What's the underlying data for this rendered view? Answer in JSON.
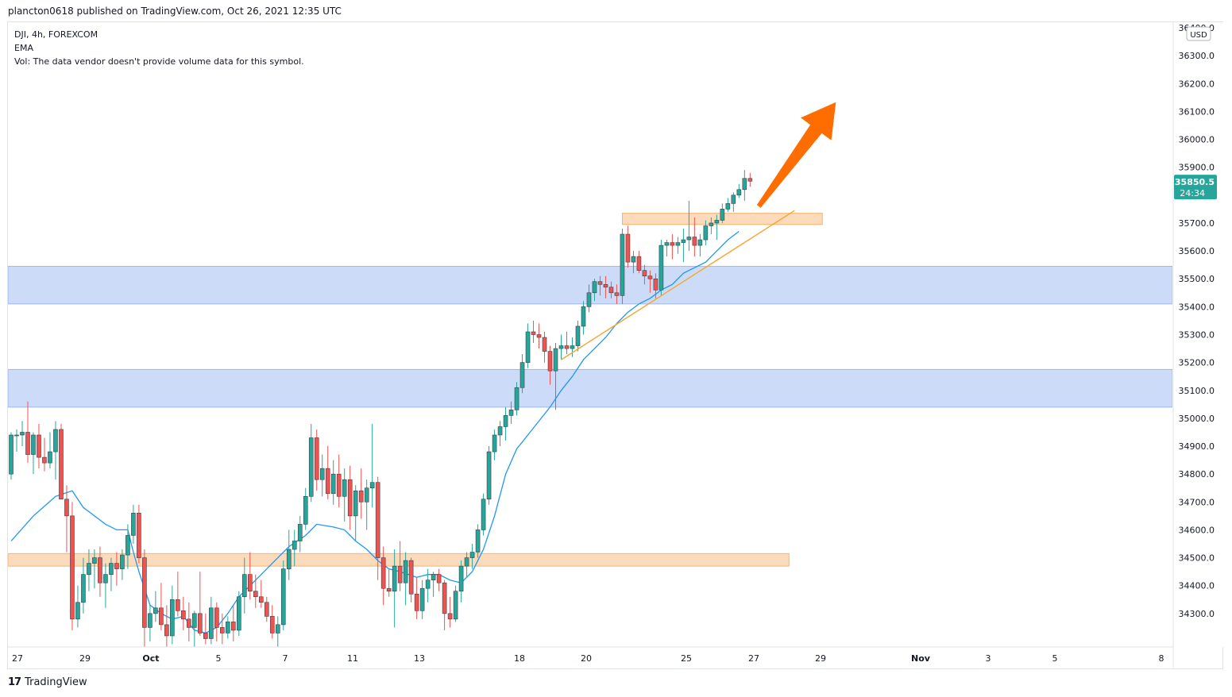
{
  "header": {
    "publish_line": "plancton0618 published on TradingView.com, Oct 26, 2021 12:35 UTC"
  },
  "legend": {
    "symbol_line": "DJI, 4h, FOREXCOM",
    "indicator": "EMA",
    "volume_note": "Vol: The data vendor doesn't provide volume data for this symbol."
  },
  "footer": {
    "brand": "TradingView",
    "logo_icon": "tradingview-logo-icon"
  },
  "chart_data": {
    "type": "candlestick",
    "symbol": "DJI",
    "timeframe": "4h",
    "exchange": "FOREXCOM",
    "currency_label": "USD",
    "ylim": [
      34180,
      36420
    ],
    "y_ticks": [
      34300,
      34400,
      34500,
      34600,
      34700,
      34800,
      34900,
      35000,
      35100,
      35200,
      35300,
      35400,
      35500,
      35600,
      35700,
      35800,
      35900,
      36000,
      36100,
      36200,
      36300,
      36400
    ],
    "x_tick_labels": [
      "27",
      "29",
      "Oct",
      "5",
      "7",
      "11",
      "13",
      "18",
      "20",
      "25",
      "27",
      "29",
      "Nov",
      "3",
      "5",
      "8"
    ],
    "last_price": {
      "value": "35850.5",
      "countdown": "24:34"
    },
    "colors": {
      "up": "#26a69a",
      "down": "#ef5350",
      "ema": "#2196f3",
      "zone_blue": "#bbd0f5",
      "zone_orange": "#fcd5b0",
      "arrow": "#ff6d00",
      "trendline": "#f7a52c"
    },
    "candles": [
      [
        34800,
        34950,
        34780,
        34940
      ],
      [
        34940,
        34960,
        34880,
        34940
      ],
      [
        34940,
        34990,
        34900,
        34950
      ],
      [
        34950,
        35060,
        34840,
        34870
      ],
      [
        34870,
        34950,
        34800,
        34940
      ],
      [
        34940,
        34980,
        34820,
        34860
      ],
      [
        34860,
        34930,
        34810,
        34840
      ],
      [
        34840,
        34950,
        34820,
        34880
      ],
      [
        34880,
        34990,
        34780,
        34960
      ],
      [
        34960,
        34980,
        34720,
        34710
      ],
      [
        34710,
        34760,
        34520,
        34650
      ],
      [
        34650,
        34700,
        34240,
        34280
      ],
      [
        34280,
        34400,
        34250,
        34340
      ],
      [
        34340,
        34500,
        34300,
        34440
      ],
      [
        34440,
        34530,
        34380,
        34480
      ],
      [
        34480,
        34530,
        34390,
        34500
      ],
      [
        34500,
        34540,
        34360,
        34410
      ],
      [
        34410,
        34480,
        34320,
        34440
      ],
      [
        34440,
        34500,
        34380,
        34480
      ],
      [
        34480,
        34520,
        34400,
        34460
      ],
      [
        34460,
        34530,
        34420,
        34510
      ],
      [
        34510,
        34620,
        34460,
        34580
      ],
      [
        34580,
        34690,
        34550,
        34660
      ],
      [
        34660,
        34690,
        34480,
        34500
      ],
      [
        34500,
        34530,
        34150,
        34250
      ],
      [
        34250,
        34330,
        34200,
        34300
      ],
      [
        34300,
        34380,
        34270,
        34320
      ],
      [
        34320,
        34410,
        34240,
        34260
      ],
      [
        34260,
        34330,
        34180,
        34220
      ],
      [
        34220,
        34400,
        34190,
        34350
      ],
      [
        34350,
        34450,
        34290,
        34310
      ],
      [
        34310,
        34360,
        34240,
        34280
      ],
      [
        34280,
        34340,
        34200,
        34250
      ],
      [
        34250,
        34310,
        34180,
        34300
      ],
      [
        34300,
        34450,
        34220,
        34230
      ],
      [
        34230,
        34300,
        34190,
        34210
      ],
      [
        34210,
        34360,
        34190,
        34320
      ],
      [
        34320,
        34340,
        34200,
        34250
      ],
      [
        34250,
        34300,
        34190,
        34230
      ],
      [
        34230,
        34290,
        34210,
        34270
      ],
      [
        34270,
        34330,
        34200,
        34240
      ],
      [
        34240,
        34380,
        34220,
        34360
      ],
      [
        34360,
        34500,
        34300,
        34440
      ],
      [
        34440,
        34520,
        34350,
        34380
      ],
      [
        34380,
        34440,
        34320,
        34360
      ],
      [
        34360,
        34420,
        34320,
        34340
      ],
      [
        34340,
        34360,
        34270,
        34290
      ],
      [
        34290,
        34330,
        34210,
        34230
      ],
      [
        34230,
        34290,
        34180,
        34260
      ],
      [
        34260,
        34490,
        34240,
        34460
      ],
      [
        34460,
        34600,
        34420,
        34530
      ],
      [
        34530,
        34600,
        34470,
        34560
      ],
      [
        34560,
        34650,
        34520,
        34620
      ],
      [
        34620,
        34750,
        34600,
        34720
      ],
      [
        34720,
        34980,
        34700,
        34930
      ],
      [
        34930,
        34960,
        34740,
        34780
      ],
      [
        34780,
        34870,
        34720,
        34820
      ],
      [
        34820,
        34900,
        34710,
        34730
      ],
      [
        34730,
        34850,
        34690,
        34800
      ],
      [
        34800,
        34870,
        34680,
        34720
      ],
      [
        34720,
        34820,
        34630,
        34780
      ],
      [
        34780,
        34830,
        34600,
        34650
      ],
      [
        34650,
        34760,
        34560,
        34740
      ],
      [
        34740,
        34820,
        34640,
        34700
      ],
      [
        34700,
        34780,
        34600,
        34750
      ],
      [
        34750,
        34980,
        34680,
        34770
      ],
      [
        34770,
        34790,
        34420,
        34500
      ],
      [
        34500,
        34540,
        34330,
        34390
      ],
      [
        34390,
        34460,
        34360,
        34380
      ],
      [
        34380,
        34530,
        34250,
        34470
      ],
      [
        34470,
        34560,
        34380,
        34410
      ],
      [
        34410,
        34520,
        34330,
        34490
      ],
      [
        34490,
        34500,
        34340,
        34370
      ],
      [
        34370,
        34430,
        34280,
        34310
      ],
      [
        34310,
        34420,
        34280,
        34390
      ],
      [
        34390,
        34460,
        34340,
        34420
      ],
      [
        34420,
        34450,
        34360,
        34440
      ],
      [
        34440,
        34460,
        34380,
        34410
      ],
      [
        34410,
        34420,
        34240,
        34300
      ],
      [
        34300,
        34360,
        34250,
        34280
      ],
      [
        34280,
        34400,
        34270,
        34380
      ],
      [
        34380,
        34490,
        34340,
        34470
      ],
      [
        34470,
        34520,
        34430,
        34500
      ],
      [
        34500,
        34550,
        34460,
        34520
      ],
      [
        34520,
        34620,
        34500,
        34600
      ],
      [
        34600,
        34730,
        34580,
        34710
      ],
      [
        34710,
        34900,
        34690,
        34880
      ],
      [
        34880,
        34960,
        34850,
        34940
      ],
      [
        34940,
        34990,
        34900,
        34970
      ],
      [
        34970,
        35040,
        34920,
        35010
      ],
      [
        35010,
        35060,
        34980,
        35030
      ],
      [
        35030,
        35130,
        35010,
        35110
      ],
      [
        35110,
        35230,
        35090,
        35200
      ],
      [
        35200,
        35340,
        35180,
        35310
      ],
      [
        35310,
        35350,
        35270,
        35300
      ],
      [
        35300,
        35340,
        35250,
        35290
      ],
      [
        35290,
        35310,
        35200,
        35240
      ],
      [
        35240,
        35260,
        35120,
        35170
      ],
      [
        35170,
        35270,
        35030,
        35250
      ],
      [
        35250,
        35300,
        35210,
        35260
      ],
      [
        35260,
        35310,
        35230,
        35250
      ],
      [
        35250,
        35290,
        35220,
        35260
      ],
      [
        35260,
        35350,
        35240,
        35330
      ],
      [
        35330,
        35420,
        35300,
        35400
      ],
      [
        35400,
        35480,
        35380,
        35450
      ],
      [
        35450,
        35500,
        35420,
        35490
      ],
      [
        35490,
        35510,
        35440,
        35480
      ],
      [
        35480,
        35510,
        35430,
        35470
      ],
      [
        35470,
        35490,
        35430,
        35450
      ],
      [
        35450,
        35480,
        35410,
        35440
      ],
      [
        35440,
        35680,
        35410,
        35660
      ],
      [
        35660,
        35690,
        35540,
        35560
      ],
      [
        35560,
        35600,
        35520,
        35580
      ],
      [
        35580,
        35600,
        35520,
        35530
      ],
      [
        35530,
        35550,
        35480,
        35510
      ],
      [
        35510,
        35530,
        35450,
        35500
      ],
      [
        35500,
        35520,
        35430,
        35460
      ],
      [
        35460,
        35640,
        35440,
        35620
      ],
      [
        35620,
        35640,
        35580,
        35630
      ],
      [
        35630,
        35660,
        35570,
        35620
      ],
      [
        35620,
        35650,
        35590,
        35630
      ],
      [
        35630,
        35680,
        35560,
        35640
      ],
      [
        35640,
        35780,
        35600,
        35650
      ],
      [
        35650,
        35720,
        35580,
        35620
      ],
      [
        35620,
        35660,
        35580,
        35640
      ],
      [
        35640,
        35710,
        35620,
        35690
      ],
      [
        35690,
        35720,
        35660,
        35700
      ],
      [
        35700,
        35730,
        35640,
        35710
      ],
      [
        35710,
        35770,
        35700,
        35750
      ],
      [
        35750,
        35790,
        35740,
        35770
      ],
      [
        35770,
        35810,
        35740,
        35800
      ],
      [
        35800,
        35840,
        35790,
        35820
      ],
      [
        35820,
        35890,
        35780,
        35860
      ],
      [
        35860,
        35880,
        35830,
        35850
      ]
    ],
    "ema": [
      [
        0,
        34560
      ],
      [
        4,
        34650
      ],
      [
        8,
        34720
      ],
      [
        11,
        34740
      ],
      [
        13,
        34680
      ],
      [
        17,
        34620
      ],
      [
        19,
        34600
      ],
      [
        21,
        34600
      ],
      [
        22,
        34520
      ],
      [
        23,
        34450
      ],
      [
        25,
        34330
      ],
      [
        27,
        34300
      ],
      [
        29,
        34280
      ],
      [
        31,
        34290
      ],
      [
        33,
        34240
      ],
      [
        35,
        34230
      ],
      [
        37,
        34250
      ],
      [
        39,
        34300
      ],
      [
        41,
        34360
      ],
      [
        43,
        34400
      ],
      [
        45,
        34440
      ],
      [
        47,
        34480
      ],
      [
        50,
        34540
      ],
      [
        53,
        34580
      ],
      [
        55,
        34620
      ],
      [
        58,
        34610
      ],
      [
        60,
        34600
      ],
      [
        62,
        34560
      ],
      [
        64,
        34530
      ],
      [
        66,
        34490
      ],
      [
        68,
        34460
      ],
      [
        70,
        34450
      ],
      [
        73,
        34430
      ],
      [
        75,
        34440
      ],
      [
        77,
        34440
      ],
      [
        79,
        34420
      ],
      [
        81,
        34410
      ],
      [
        83,
        34450
      ],
      [
        85,
        34530
      ],
      [
        87,
        34650
      ],
      [
        89,
        34800
      ],
      [
        91,
        34890
      ],
      [
        93,
        34940
      ],
      [
        95,
        34990
      ],
      [
        97,
        35040
      ],
      [
        99,
        35100
      ],
      [
        101,
        35150
      ],
      [
        103,
        35210
      ],
      [
        105,
        35250
      ],
      [
        107,
        35290
      ],
      [
        109,
        35340
      ],
      [
        111,
        35380
      ],
      [
        113,
        35410
      ],
      [
        115,
        35430
      ],
      [
        117,
        35460
      ],
      [
        119,
        35480
      ],
      [
        121,
        35520
      ],
      [
        123,
        35540
      ],
      [
        125,
        35560
      ],
      [
        127,
        35600
      ],
      [
        129,
        35640
      ],
      [
        131,
        35670
      ]
    ],
    "zones": [
      {
        "kind": "support-zone",
        "from": 35410,
        "to": 35545,
        "start_index": 0,
        "end_index": "right-edge"
      },
      {
        "kind": "support-zone",
        "from": 35040,
        "to": 35175,
        "start_index": 0,
        "end_index": "right-edge"
      },
      {
        "kind": "resistance-zone",
        "from": 35695,
        "to": 35735,
        "start_index": 110,
        "end_index": 146
      },
      {
        "kind": "pivot-zone",
        "from": 34470,
        "to": 34515,
        "start_index": 0,
        "end_index": 140
      }
    ],
    "trendline": {
      "from": [
        99,
        35210
      ],
      "to": [
        141,
        35745
      ]
    },
    "arrow": {
      "from": [
        134,
        35760
      ],
      "to": [
        142,
        36190
      ]
    }
  }
}
